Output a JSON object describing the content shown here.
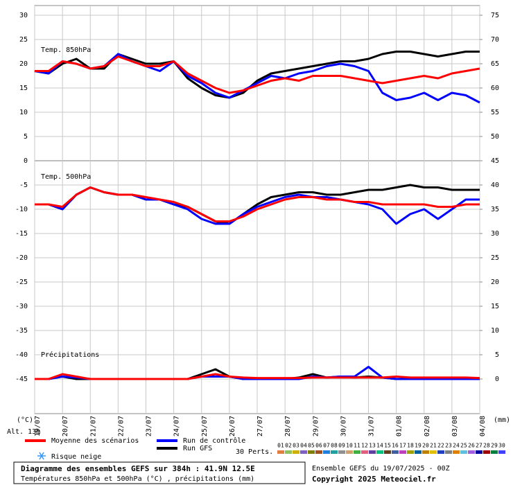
{
  "chart_data": {
    "type": "line",
    "title": "Diagramme des ensembles GEFS sur 384h : 41.9N 12.5E",
    "subtitle": "Températures 850hPa et 500hPa (°C) , précipitations (mm)",
    "run_info": "Ensemble GEFS du 19/07/2025 - 00Z",
    "copyright": "Copyright 2025 Meteociel.fr",
    "y_label": "(°C)",
    "y2_label": "(mm)",
    "altitude": "Alt. 13m",
    "snow_label": "Risque neige",
    "x": [
      0,
      12,
      24,
      36,
      48,
      60,
      72,
      84,
      96,
      108,
      120,
      132,
      144,
      156,
      168,
      180,
      192,
      204,
      216,
      228,
      240,
      252,
      264,
      276,
      288,
      300,
      312,
      324,
      336,
      348,
      360,
      372,
      384
    ],
    "xlim": [
      0,
      384
    ],
    "xticks": [
      {
        "value": 0,
        "label": "19/07"
      },
      {
        "value": 24,
        "label": "20/07"
      },
      {
        "value": 48,
        "label": "21/07"
      },
      {
        "value": 72,
        "label": "22/07"
      },
      {
        "value": 96,
        "label": "23/07"
      },
      {
        "value": 120,
        "label": "24/07"
      },
      {
        "value": 144,
        "label": "25/07"
      },
      {
        "value": 168,
        "label": "26/07"
      },
      {
        "value": 192,
        "label": "27/07"
      },
      {
        "value": 216,
        "label": "28/07"
      },
      {
        "value": 240,
        "label": "29/07"
      },
      {
        "value": 264,
        "label": "30/07"
      },
      {
        "value": 288,
        "label": "31/07"
      },
      {
        "value": 312,
        "label": "01/08"
      },
      {
        "value": 336,
        "label": "02/08"
      },
      {
        "value": 360,
        "label": "03/08"
      },
      {
        "value": 384,
        "label": "04/08"
      }
    ],
    "ylim": [
      -45,
      30
    ],
    "yticks": [
      -45,
      -40,
      -35,
      -30,
      -25,
      -20,
      -15,
      -10,
      -5,
      0,
      5,
      10,
      15,
      20,
      25,
      30
    ],
    "y2lim": [
      0,
      75
    ],
    "y2ticks": [
      0,
      5,
      10,
      15,
      20,
      25,
      30,
      35,
      40,
      45,
      50,
      55,
      60,
      65,
      70,
      75
    ],
    "grid": true,
    "series": [
      {
        "name": "Moyenne des scénarios",
        "color": "#ff0000"
      },
      {
        "name": "Run de contrôle",
        "color": "#0000ff"
      },
      {
        "name": "Run GFS",
        "color": "#000000"
      }
    ],
    "panels": [
      {
        "label": "Temp. 850hPa",
        "axis": "y",
        "values": [
          [
            18.5,
            18.5,
            20.5,
            20,
            19,
            19.5,
            21.5,
            20.5,
            19.5,
            19.5,
            20.5,
            18,
            16.5,
            15,
            14,
            14.5,
            15.5,
            16.5,
            17,
            16.5,
            17.5,
            17.5,
            17.5,
            17,
            16.5,
            16,
            16.5,
            17,
            17.5,
            17,
            18,
            18.5,
            19
          ],
          [
            18.5,
            18,
            20.5,
            20,
            19,
            19.5,
            22,
            20.5,
            19.5,
            18.5,
            20.5,
            17.5,
            16,
            14,
            13,
            14.5,
            16,
            17.5,
            17,
            18,
            18.5,
            19.5,
            20,
            19.5,
            18.5,
            14,
            12.5,
            13,
            14,
            12.5,
            14,
            13.5,
            12
          ],
          [
            18.5,
            18,
            20,
            21,
            19,
            19,
            22,
            21,
            20,
            20,
            20.5,
            17,
            15,
            13.5,
            13,
            14,
            16.5,
            18,
            18.5,
            19,
            19.5,
            20,
            20.5,
            20.5,
            21,
            22,
            22.5,
            22.5,
            22,
            21.5,
            22,
            22.5,
            22.5
          ]
        ]
      },
      {
        "label": "Temp. 500hPa",
        "axis": "y",
        "values": [
          [
            -9,
            -9,
            -9.5,
            -7,
            -5.5,
            -6.5,
            -7,
            -7,
            -7.5,
            -8,
            -8.5,
            -9.5,
            -11,
            -12.5,
            -12.5,
            -11.5,
            -10,
            -9,
            -8,
            -7.5,
            -7.5,
            -8,
            -8,
            -8.5,
            -8.5,
            -9,
            -9,
            -9,
            -9,
            -9.5,
            -9.5,
            -9,
            -9
          ],
          [
            -9,
            -9,
            -10,
            -7,
            -5.5,
            -6.5,
            -7,
            -7,
            -8,
            -8,
            -9,
            -10,
            -12,
            -13,
            -13,
            -11,
            -9.5,
            -8.5,
            -7.5,
            -7,
            -7.5,
            -7.5,
            -8,
            -8.5,
            -9,
            -10,
            -13,
            -11,
            -10,
            -12,
            -10,
            -8,
            -8
          ],
          [
            -9,
            -9,
            -10,
            -7,
            -5.5,
            -6.5,
            -7,
            -7,
            -8,
            -8,
            -9,
            -9.5,
            -11,
            -12.5,
            -13,
            -11,
            -9,
            -7.5,
            -7,
            -6.5,
            -6.5,
            -7,
            -7,
            -6.5,
            -6,
            -6,
            -5.5,
            -5,
            -5.5,
            -5.5,
            -6,
            -6,
            -6
          ]
        ]
      },
      {
        "label": "Précipitations",
        "axis": "y2",
        "values": [
          [
            0,
            0,
            1,
            0.5,
            0,
            0,
            0,
            0,
            0,
            0,
            0,
            0,
            0.5,
            1,
            0.5,
            0.3,
            0.2,
            0.2,
            0.2,
            0.2,
            0.3,
            0.3,
            0.3,
            0.3,
            0.3,
            0.3,
            0.5,
            0.3,
            0.3,
            0.3,
            0.3,
            0.3,
            0.2
          ],
          [
            0,
            0,
            0.5,
            0.3,
            0,
            0,
            0,
            0,
            0,
            0,
            0,
            0,
            0.5,
            0.5,
            0.5,
            0,
            0,
            0,
            0,
            0,
            0.5,
            0.3,
            0.5,
            0.5,
            2.5,
            0.3,
            0,
            0,
            0,
            0,
            0,
            0,
            0
          ],
          [
            0,
            0,
            0.5,
            0,
            0,
            0,
            0,
            0,
            0,
            0,
            0,
            0,
            1,
            2,
            0.5,
            0,
            0,
            0,
            0,
            0.3,
            1,
            0.3,
            0.5,
            0.3,
            0.5,
            0.3,
            0,
            0,
            0,
            0,
            0,
            0,
            0
          ]
        ]
      }
    ],
    "perturbations": {
      "label": "30 Perts.",
      "members": [
        {
          "name": "01",
          "color": "#e08040"
        },
        {
          "name": "02",
          "color": "#90c060"
        },
        {
          "name": "03",
          "color": "#d0b000"
        },
        {
          "name": "04",
          "color": "#8060c0"
        },
        {
          "name": "05",
          "color": "#808000"
        },
        {
          "name": "06",
          "color": "#a05020"
        },
        {
          "name": "07",
          "color": "#2080e0"
        },
        {
          "name": "08",
          "color": "#20a0a0"
        },
        {
          "name": "09",
          "color": "#909090"
        },
        {
          "name": "10",
          "color": "#d0a070"
        },
        {
          "name": "11",
          "color": "#40b040"
        },
        {
          "name": "12",
          "color": "#e06080"
        },
        {
          "name": "13",
          "color": "#6040a0"
        },
        {
          "name": "14",
          "color": "#00c080"
        },
        {
          "name": "15",
          "color": "#604020"
        },
        {
          "name": "16",
          "color": "#4060a0"
        },
        {
          "name": "17",
          "color": "#c040c0"
        },
        {
          "name": "18",
          "color": "#a0a000"
        },
        {
          "name": "19",
          "color": "#0060a0"
        },
        {
          "name": "20",
          "color": "#c08000"
        },
        {
          "name": "21",
          "color": "#e0c000"
        },
        {
          "name": "22",
          "color": "#2040c0"
        },
        {
          "name": "23",
          "color": "#808080"
        },
        {
          "name": "24",
          "color": "#e08000"
        },
        {
          "name": "25",
          "color": "#60c0e0"
        },
        {
          "name": "26",
          "color": "#a060e0"
        },
        {
          "name": "27",
          "color": "#0000a0"
        },
        {
          "name": "28",
          "color": "#a00000"
        },
        {
          "name": "29",
          "color": "#008040"
        },
        {
          "name": "30",
          "color": "#4040ff"
        }
      ]
    }
  }
}
